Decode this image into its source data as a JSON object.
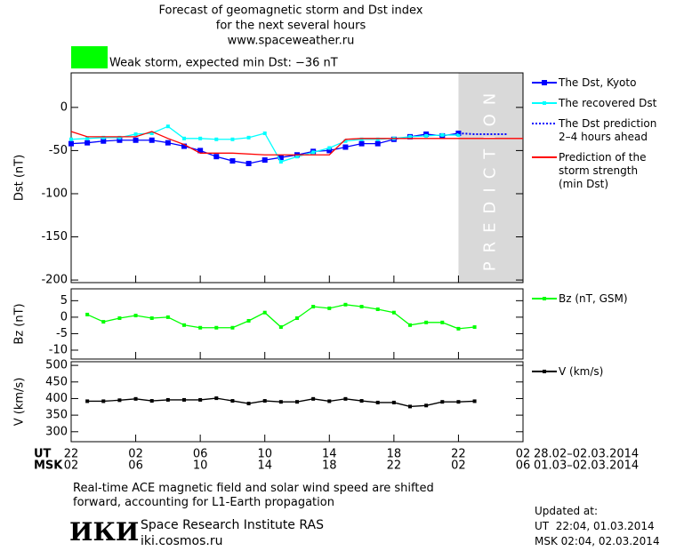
{
  "title": [
    "Forecast of geomagnetic storm and Dst index",
    "for the next several hours",
    "www.spaceweather.ru"
  ],
  "status": {
    "text": "Weak storm, expected min Dst: −36 nT",
    "color": "#00ff00"
  },
  "chart_data": [
    {
      "type": "line",
      "y_label": "Dst (nT)",
      "xlim": [
        0,
        28
      ],
      "ylim": [
        -203,
        40
      ],
      "yticks": [
        0,
        -50,
        -100,
        -150,
        -200
      ],
      "shaded_region": {
        "xlim": [
          24,
          28
        ],
        "label": "PREDICTION",
        "color": "#d9d9d9"
      },
      "series": [
        {
          "name": "The Dst, Kyoto",
          "color": "#0000ff",
          "marker": "square",
          "x": [
            0,
            1,
            2,
            3,
            4,
            5,
            6,
            7,
            8,
            9,
            10,
            11,
            12,
            13,
            14,
            15,
            16,
            17,
            18,
            19,
            20,
            21,
            22,
            23,
            24
          ],
          "values": [
            -42,
            -41,
            -39,
            -38,
            -38,
            -38,
            -41,
            -45,
            -50,
            -57,
            -62,
            -65,
            -61,
            -58,
            -55,
            -51,
            -50,
            -46,
            -42,
            -42,
            -37,
            -34,
            -31,
            -33,
            -30
          ]
        },
        {
          "name": "The recovered Dst",
          "color": "#00ffff",
          "marker": "small",
          "x": [
            0,
            1,
            2,
            3,
            4,
            5,
            6,
            7,
            8,
            9,
            10,
            11,
            12,
            13,
            14,
            15,
            16,
            17,
            18,
            19,
            20,
            21,
            22,
            23,
            24
          ],
          "values": [
            -37,
            -36,
            -35,
            -35,
            -31,
            -30,
            -22,
            -36,
            -36,
            -37,
            -37,
            -35,
            -30,
            -63,
            -57,
            -52,
            -47,
            -39,
            -37,
            -37,
            -36,
            -34,
            -33,
            -32,
            -32
          ]
        },
        {
          "name": "The Dst prediction\n2–4 hours ahead",
          "color": "#0000ff",
          "dash": true,
          "x": [
            24,
            25,
            26,
            27
          ],
          "values": [
            -30,
            -31,
            -31,
            -31
          ]
        },
        {
          "name": "Prediction of the\nstorm strength\n(min Dst)",
          "color": "#ff0000",
          "x": [
            0,
            1,
            4,
            5,
            6,
            7,
            8,
            10,
            12,
            13,
            16,
            17,
            18,
            19,
            28
          ],
          "values": [
            -28,
            -34,
            -34,
            -28,
            -36,
            -43,
            -53,
            -53,
            -55,
            -55,
            -55,
            -37,
            -36,
            -36,
            -36
          ]
        }
      ]
    },
    {
      "type": "line",
      "y_label": "Bz (nT)",
      "xlim": [
        0,
        28
      ],
      "ylim": [
        -12.7,
        8.6
      ],
      "yticks": [
        5,
        0,
        -5,
        -10
      ],
      "series": [
        {
          "name": "Bz (nT, GSM)",
          "color": "#00ff00",
          "marker": "small",
          "x": [
            1,
            2,
            3,
            4,
            5,
            6,
            7,
            8,
            9,
            10,
            11,
            12,
            13,
            14,
            15,
            16,
            17,
            18,
            19,
            20,
            21,
            22,
            23,
            24,
            25
          ],
          "values": [
            0.8,
            -1.4,
            -0.3,
            0.5,
            -0.3,
            0,
            -2.4,
            -3.2,
            -3.2,
            -3.2,
            -1.1,
            1.4,
            -3,
            -0.3,
            3.2,
            2.7,
            3.8,
            3.2,
            2.4,
            1.4,
            -2.4,
            -1.6,
            -1.6,
            -3.5,
            -3
          ]
        }
      ]
    },
    {
      "type": "line",
      "y_label": "V (km/s)",
      "xlim": [
        0,
        28
      ],
      "ylim": [
        270,
        511
      ],
      "yticks": [
        500,
        450,
        400,
        350,
        300
      ],
      "series": [
        {
          "name": "V (km/s)",
          "color": "#000000",
          "marker": "small",
          "x": [
            1,
            2,
            3,
            4,
            5,
            6,
            7,
            8,
            9,
            10,
            11,
            12,
            13,
            14,
            15,
            16,
            17,
            18,
            19,
            20,
            21,
            22,
            23,
            24,
            25
          ],
          "values": [
            392,
            392,
            395,
            399,
            393,
            396,
            396,
            396,
            401,
            393,
            385,
            393,
            390,
            390,
            399,
            392,
            399,
            393,
            388,
            388,
            376,
            379,
            390,
            390,
            392
          ]
        }
      ]
    }
  ],
  "time_axis": [
    {
      "label": "UT",
      "range": "28.02–02.03.2014",
      "ticks": [
        {
          "value": 0,
          "label": "22"
        },
        {
          "value": 4,
          "label": "02"
        },
        {
          "value": 8,
          "label": "06"
        },
        {
          "value": 12,
          "label": "10"
        },
        {
          "value": 16,
          "label": "14"
        },
        {
          "value": 20,
          "label": "18"
        },
        {
          "value": 24,
          "label": "22"
        },
        {
          "value": 28,
          "label": "02"
        }
      ]
    },
    {
      "label": "MSK",
      "range": "01.03–02.03.2014",
      "ticks": [
        {
          "value": 0,
          "label": "02"
        },
        {
          "value": 4,
          "label": "06"
        },
        {
          "value": 8,
          "label": "10"
        },
        {
          "value": 12,
          "label": "14"
        },
        {
          "value": 16,
          "label": "18"
        },
        {
          "value": 20,
          "label": "22"
        },
        {
          "value": 24,
          "label": "02"
        },
        {
          "value": 28,
          "label": "06"
        }
      ]
    }
  ],
  "note": [
    "Real-time ACE magnetic field and solar wind speed are shifted",
    "forward, accounting for L1-Earth propagation"
  ],
  "institute": {
    "logo": "ИКИ",
    "name": "Space Research Institute RAS",
    "url": "iki.cosmos.ru"
  },
  "updated": [
    "Updated at:",
    "UT  22:04, 01.03.2014",
    "MSK 02:04, 02.03.2014"
  ]
}
